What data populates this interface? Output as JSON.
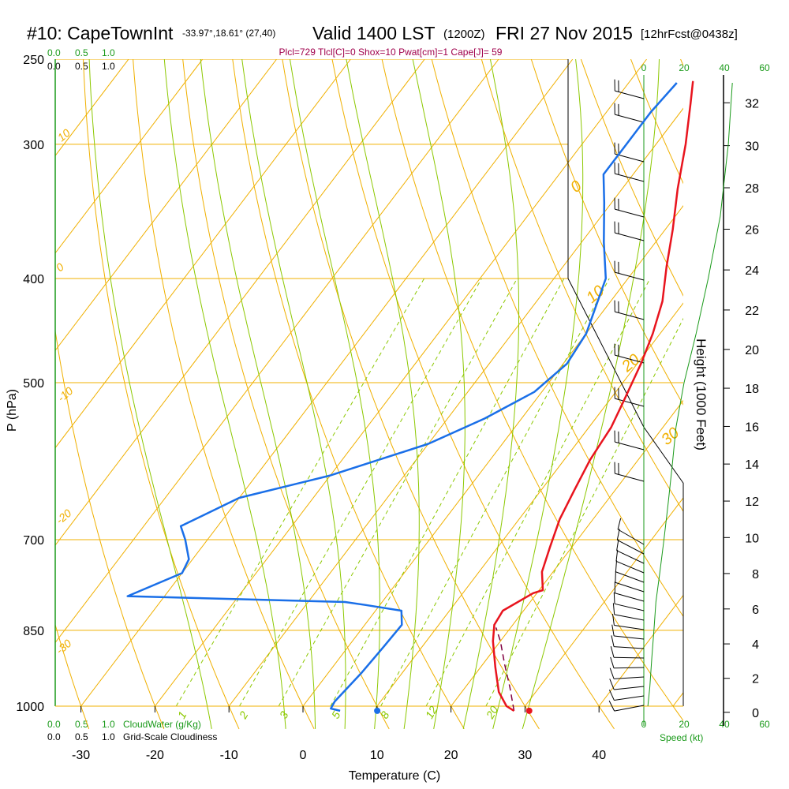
{
  "header": {
    "station": "#10: CapeTownInt",
    "coords": "-33.97°,18.61° (27,40)",
    "valid": "Valid 1400 LST",
    "zulu": "(1200Z)",
    "date": "FRI 27 Nov 2015",
    "forecast": "[12hrFcst@0438z]",
    "indices": "Plcl=729 Tlcl[C]=0 Shox=10 Pwat[cm]=1 Cape[J]= 59"
  },
  "colors": {
    "temperature": "#e8141e",
    "dewpoint": "#1a6fe8",
    "isotherm": "#f0b000",
    "mixing_ratio": "#8cc800",
    "parcel": "#800040",
    "wind_speed": "#1a9a1a",
    "cloud_scale": "#1a9a1a",
    "indices_text": "#a0004c"
  },
  "cloud_scale": {
    "top_green": [
      "0.0",
      "0.5",
      "1.0"
    ],
    "top_black": [
      "0.0",
      "0.5",
      "1.0"
    ],
    "bottom_green": [
      "0.0",
      "0.5",
      "1.0"
    ],
    "bottom_black": [
      "0.0",
      "0.5",
      "1.0"
    ],
    "cloudwater_label": "CloudWater (g/Kg)",
    "cloudiness_label": "Grid-Scale Cloudiness"
  },
  "wind_scale": {
    "ticks": [
      "0",
      "20",
      "40",
      "60"
    ],
    "label": "Speed (kt)"
  },
  "chart_data": {
    "type": "line",
    "xlabel": "Temperature (C)",
    "ylabel": "P (hPa)",
    "y2label": "Height (1000 Feet)",
    "x_ticks": [
      -30,
      -20,
      -10,
      0,
      10,
      20,
      30,
      40
    ],
    "pressure_ticks": [
      250,
      300,
      400,
      500,
      700,
      850,
      1000
    ],
    "height_ticks": [
      0,
      2,
      4,
      6,
      8,
      10,
      12,
      14,
      16,
      18,
      20,
      22,
      24,
      26,
      28,
      30,
      32
    ],
    "isotherm_labels": [
      "10",
      "0",
      "-10",
      "-20",
      "-30",
      "0",
      "10",
      "20",
      "30"
    ],
    "mixing_ratio_labels": [
      "1",
      "2",
      "3",
      "5",
      "8",
      "12",
      "20"
    ],
    "series": [
      {
        "name": "Temperature",
        "points": [
          [
            29.0,
            1010
          ],
          [
            27.5,
            1000
          ],
          [
            25.0,
            970
          ],
          [
            22.0,
            920
          ],
          [
            19.0,
            870
          ],
          [
            17.5,
            840
          ],
          [
            17.2,
            815
          ],
          [
            19.5,
            785
          ],
          [
            20.5,
            780
          ],
          [
            18.5,
            750
          ],
          [
            17.0,
            710
          ],
          [
            15.5,
            670
          ],
          [
            14.5,
            630
          ],
          [
            13.5,
            590
          ],
          [
            13.0,
            550
          ],
          [
            12.0,
            520
          ],
          [
            10.5,
            480
          ],
          [
            9.0,
            450
          ],
          [
            7.0,
            420
          ],
          [
            4.0,
            390
          ],
          [
            1.0,
            360
          ],
          [
            -2.5,
            330
          ],
          [
            -6.0,
            300
          ],
          [
            -9.5,
            275
          ],
          [
            -11.5,
            262
          ]
        ]
      },
      {
        "name": "Dewpoint",
        "points": [
          [
            5.5,
            1010
          ],
          [
            4.0,
            1005
          ],
          [
            3.8,
            990
          ],
          [
            4.5,
            930
          ],
          [
            4.8,
            880
          ],
          [
            5.0,
            840
          ],
          [
            3.5,
            815
          ],
          [
            -2.0,
            805
          ],
          [
            -5.0,
            800
          ],
          [
            -35.0,
            790
          ],
          [
            -30.0,
            752
          ],
          [
            -30.5,
            730
          ],
          [
            -33.0,
            700
          ],
          [
            -35.0,
            680
          ],
          [
            -30.0,
            640
          ],
          [
            -20.0,
            610
          ],
          [
            -10.0,
            570
          ],
          [
            -5.0,
            540
          ],
          [
            -1.0,
            510
          ],
          [
            0.5,
            480
          ],
          [
            0.0,
            450
          ],
          [
            -3.0,
            400
          ],
          [
            -7.0,
            370
          ],
          [
            -11.0,
            340
          ],
          [
            -14.0,
            320
          ],
          [
            -14.0,
            310
          ],
          [
            -14.0,
            295
          ],
          [
            -14.0,
            280
          ],
          [
            -13.5,
            263
          ]
        ]
      },
      {
        "name": "Parcel",
        "points": [
          [
            29.0,
            1010
          ],
          [
            26.0,
            960
          ],
          [
            23.0,
            915
          ],
          [
            20.0,
            870
          ],
          [
            18.0,
            845
          ]
        ]
      },
      {
        "name": "Wind Speed",
        "points": [
          [
            2,
            1000
          ],
          [
            3,
            960
          ],
          [
            4,
            900
          ],
          [
            5,
            850
          ],
          [
            6,
            800
          ],
          [
            8,
            750
          ],
          [
            10,
            700
          ],
          [
            12,
            650
          ],
          [
            14,
            600
          ],
          [
            16,
            550
          ],
          [
            20,
            500
          ],
          [
            26,
            450
          ],
          [
            32,
            400
          ],
          [
            38,
            350
          ],
          [
            42,
            300
          ],
          [
            44,
            263
          ]
        ]
      }
    ],
    "surface_markers": {
      "temperature": 29.5,
      "dewpoint": 9.5
    },
    "grid": true
  }
}
